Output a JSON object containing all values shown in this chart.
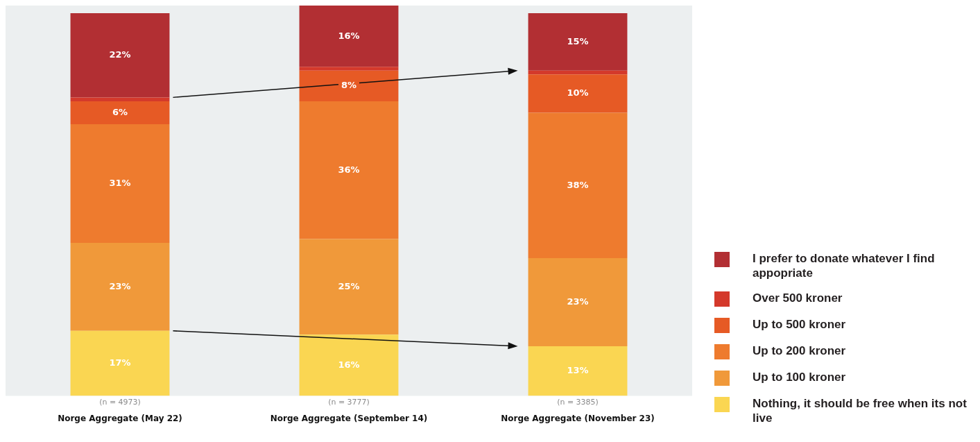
{
  "chart_data": {
    "type": "bar",
    "stacked": true,
    "categories": [
      "Norge Aggregate (May 22)",
      "Norge Aggregate (September 14)",
      "Norge Aggregate (November 23)"
    ],
    "series": [
      {
        "name": "Nothing, it should be free when its not live",
        "color": "#fad652",
        "values": [
          17,
          16,
          13
        ],
        "value_labels": [
          "17%",
          "16%",
          "13%"
        ]
      },
      {
        "name": "Up to 100 kroner",
        "color": "#f0993a",
        "values": [
          23,
          25,
          23
        ],
        "value_labels": [
          "23%",
          "25%",
          "23%"
        ]
      },
      {
        "name": "Up to 200 kroner",
        "color": "#ee7b2e",
        "values": [
          31,
          36,
          38
        ],
        "value_labels": [
          "31%",
          "36%",
          "38%"
        ]
      },
      {
        "name": "Up to 500 kroner",
        "color": "#e65a25",
        "values": [
          6,
          8,
          10
        ],
        "value_labels": [
          "6%",
          "8%",
          "10%"
        ]
      },
      {
        "name": "Over 500 kroner",
        "color": "#d4392b",
        "values": [
          1,
          1,
          1
        ],
        "value_labels": [
          null,
          null,
          null
        ]
      },
      {
        "name": "I prefer to donate whatever I find appopriate",
        "color": "#b22f33",
        "values": [
          22,
          16,
          15
        ],
        "value_labels": [
          "22%",
          "16%",
          "15%"
        ]
      }
    ],
    "ylim": [
      0,
      102
    ],
    "tick_labels": "x",
    "grid": false,
    "legend": "right",
    "annotations": [
      "(n = 4973)",
      "(n = 3777)",
      "(n = 3385)"
    ]
  }
}
